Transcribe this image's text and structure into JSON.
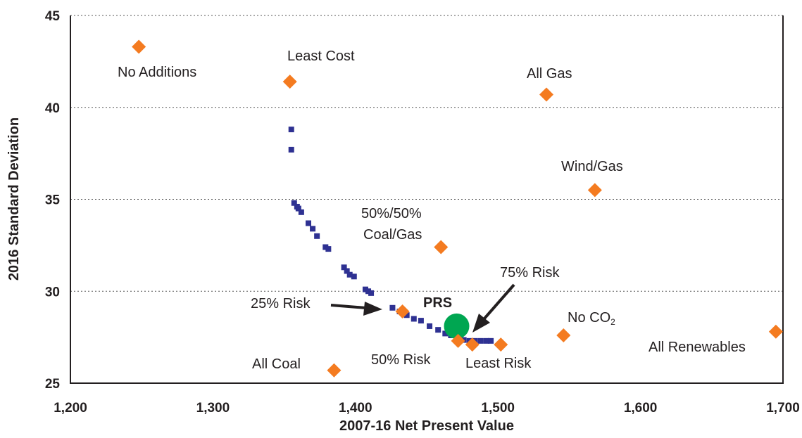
{
  "chart_data": {
    "type": "scatter",
    "xlabel": "2007-16 Net Present Value",
    "ylabel": "2016 Standard Deviation",
    "xlim": [
      1200,
      1700
    ],
    "ylim": [
      25,
      45
    ],
    "xticks": [
      1200,
      1300,
      1400,
      1500,
      1600,
      1700
    ],
    "xtick_labels": [
      "1,200",
      "1,300",
      "1,400",
      "1,500",
      "1,600",
      "1,700"
    ],
    "yticks": [
      25,
      30,
      35,
      40,
      45
    ],
    "ytick_labels": [
      "25",
      "30",
      "35",
      "40",
      "45"
    ],
    "grid": "horizontal dotted",
    "colors": {
      "frontier": "#2e3192",
      "portfolio": "#f47b20",
      "prs": "#00a651",
      "text": "#231f20"
    },
    "frontier_points": [
      {
        "x": 1355,
        "y": 38.8
      },
      {
        "x": 1355,
        "y": 37.7
      },
      {
        "x": 1357,
        "y": 34.8
      },
      {
        "x": 1359,
        "y": 34.6
      },
      {
        "x": 1360,
        "y": 34.5
      },
      {
        "x": 1362,
        "y": 34.3
      },
      {
        "x": 1367,
        "y": 33.7
      },
      {
        "x": 1370,
        "y": 33.4
      },
      {
        "x": 1373,
        "y": 33.0
      },
      {
        "x": 1379,
        "y": 32.4
      },
      {
        "x": 1381,
        "y": 32.3
      },
      {
        "x": 1392,
        "y": 31.3
      },
      {
        "x": 1394,
        "y": 31.1
      },
      {
        "x": 1396,
        "y": 30.9
      },
      {
        "x": 1399,
        "y": 30.8
      },
      {
        "x": 1407,
        "y": 30.1
      },
      {
        "x": 1409,
        "y": 30.0
      },
      {
        "x": 1411,
        "y": 29.9
      },
      {
        "x": 1426,
        "y": 29.1
      },
      {
        "x": 1431,
        "y": 28.9
      },
      {
        "x": 1436,
        "y": 28.7
      },
      {
        "x": 1441,
        "y": 28.5
      },
      {
        "x": 1446,
        "y": 28.4
      },
      {
        "x": 1452,
        "y": 28.1
      },
      {
        "x": 1458,
        "y": 27.9
      },
      {
        "x": 1463,
        "y": 27.7
      },
      {
        "x": 1467,
        "y": 27.6
      },
      {
        "x": 1472,
        "y": 27.4
      },
      {
        "x": 1476,
        "y": 27.35
      },
      {
        "x": 1480,
        "y": 27.3
      },
      {
        "x": 1484,
        "y": 27.3
      },
      {
        "x": 1488,
        "y": 27.3
      },
      {
        "x": 1492,
        "y": 27.3
      },
      {
        "x": 1495,
        "y": 27.3
      }
    ],
    "portfolios": [
      {
        "name": "No Additions",
        "x": 1248,
        "y": 43.3
      },
      {
        "name": "Least Cost",
        "x": 1354,
        "y": 41.4
      },
      {
        "name": "All Gas",
        "x": 1534,
        "y": 40.7
      },
      {
        "name": "Wind/Gas",
        "x": 1568,
        "y": 35.5
      },
      {
        "name": "50%/50% Coal/Gas",
        "x": 1460,
        "y": 32.4
      },
      {
        "name": "25% Risk",
        "x": 1433,
        "y": 28.9
      },
      {
        "name": "50% Risk",
        "x": 1472,
        "y": 27.3
      },
      {
        "name": "75% Risk",
        "x": 1482,
        "y": 27.1
      },
      {
        "name": "Least Risk",
        "x": 1502,
        "y": 27.1
      },
      {
        "name": "No CO2",
        "x": 1546,
        "y": 27.6
      },
      {
        "name": "All Renewables",
        "x": 1695,
        "y": 27.8
      },
      {
        "name": "All Coal",
        "x": 1385,
        "y": 25.7
      }
    ],
    "prs_point": {
      "name": "PRS",
      "x": 1471,
      "y": 28.1
    },
    "annotations": {
      "no_additions": "No Additions",
      "least_cost": "Least Cost",
      "all_gas": "All Gas",
      "wind_gas": "Wind/Gas",
      "coal_gas_line1": "50%/50%",
      "coal_gas_line2": "Coal/Gas",
      "risk_25": "25% Risk",
      "prs": "PRS",
      "risk_75": "75% Risk",
      "no_co2_main": "No CO",
      "no_co2_sub": "2",
      "all_renewables": "All Renewables",
      "all_coal": "All Coal",
      "risk_50": "50% Risk",
      "least_risk": "Least Risk"
    }
  }
}
